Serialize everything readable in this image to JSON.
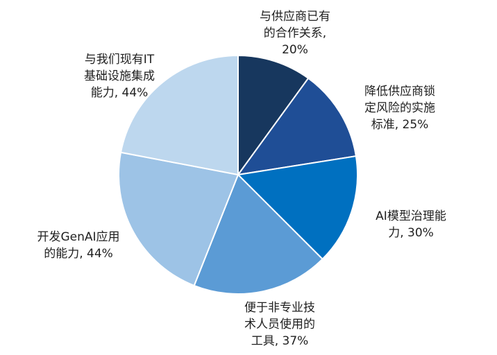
{
  "chart_data": {
    "type": "pie",
    "slices": [
      {
        "name": "与供应商已有的合作关系",
        "value": 20,
        "color": "#17375e",
        "label_lines": [
          "与供应商已有",
          "的合作关系,",
          "20%"
        ]
      },
      {
        "name": "降低供应商锁定风险的实施标准",
        "value": 25,
        "color": "#1f4e96",
        "label_lines": [
          "降低供应商锁",
          "定风险的实施",
          "标准, 25%"
        ]
      },
      {
        "name": "AI模型治理能力",
        "value": 30,
        "color": "#0070c0",
        "label_lines": [
          "AI模型治理能",
          "力, 30%"
        ]
      },
      {
        "name": "便于非专业技术人员使用的工具",
        "value": 37,
        "color": "#5b9bd5",
        "label_lines": [
          "便于非专业技",
          "术人员使用的",
          "工具, 37%"
        ]
      },
      {
        "name": "开发GenAI应用的能力",
        "value": 44,
        "color": "#9dc3e6",
        "label_lines": [
          "开发GenAI应用",
          "的能力, 44%"
        ]
      },
      {
        "name": "与我们现有IT基础设施集成能力",
        "value": 44,
        "color": "#bdd7ee",
        "label_lines": [
          "与我们现有IT",
          "基础设施集成",
          "能力, 44%"
        ]
      }
    ]
  }
}
